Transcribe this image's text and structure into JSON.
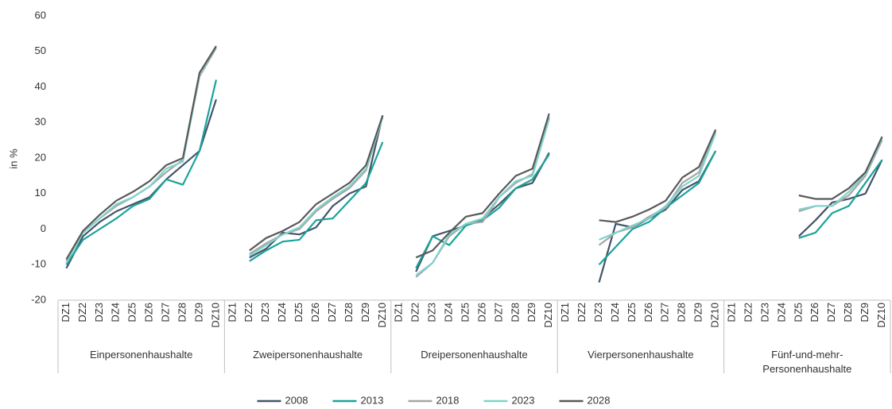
{
  "chart_data": {
    "type": "line",
    "y_label": "in %",
    "categories": [
      "DZ1",
      "DZ2",
      "DZ3",
      "DZ4",
      "DZ5",
      "DZ6",
      "DZ7",
      "DZ8",
      "DZ9",
      "DZ10",
      "DZ1",
      "DZ2",
      "DZ3",
      "DZ4",
      "DZ5",
      "DZ6",
      "DZ7",
      "DZ8",
      "DZ9",
      "DZ10",
      "DZ1",
      "DZ2",
      "DZ3",
      "DZ4",
      "DZ5",
      "DZ6",
      "DZ7",
      "DZ8",
      "DZ9",
      "DZ10",
      "DZ1",
      "DZ2",
      "DZ3",
      "DZ4",
      "DZ5",
      "DZ6",
      "DZ7",
      "DZ8",
      "DZ9",
      "DZ10",
      "DZ1",
      "DZ2",
      "DZ3",
      "DZ4",
      "DZ5",
      "DZ6",
      "DZ7",
      "DZ8",
      "DZ9",
      "DZ10"
    ],
    "groups": [
      "Einpersonenhaushalte",
      "Zweipersonenhaushalte",
      "Dreipersonenhaushalte",
      "Vierpersonenhaushalte",
      "Fünf-und-mehr-Personenhaushalte"
    ],
    "series": [
      {
        "name": "2008",
        "color": "#44546a",
        "values": [
          -11,
          -2,
          2,
          5,
          7,
          9,
          14,
          18,
          22,
          36.5,
          null,
          -8,
          -5.5,
          -1,
          -1.5,
          0.5,
          6.5,
          10,
          12,
          32,
          null,
          -12,
          -2,
          -0.5,
          1,
          3,
          7,
          11.5,
          13,
          21.5,
          null,
          null,
          -15,
          1.5,
          0.5,
          3,
          5.5,
          11,
          13.5,
          22,
          null,
          null,
          null,
          null,
          -2,
          2.5,
          7.5,
          8.5,
          10,
          19.5
        ]
      },
      {
        "name": "2013",
        "color": "#1aa39a",
        "values": [
          -10,
          -3,
          0,
          3,
          6.5,
          8.5,
          14,
          12.5,
          22,
          42,
          null,
          -9,
          -6,
          -3.5,
          -3,
          2.5,
          3,
          8,
          13,
          24.5,
          null,
          -11,
          -2,
          -4.5,
          1,
          2.5,
          6,
          11.5,
          14,
          21,
          null,
          null,
          -10,
          -5,
          0,
          2,
          6,
          9.5,
          13,
          22,
          null,
          null,
          null,
          null,
          -2.5,
          -1,
          4.5,
          6.5,
          13,
          19.5
        ]
      },
      {
        "name": "2018",
        "color": "#a6a6a6",
        "values": [
          -9,
          -1,
          3,
          6.5,
          9,
          12,
          16,
          19.5,
          43,
          51,
          null,
          -7,
          -4,
          -1.5,
          0,
          5,
          8.5,
          11.5,
          16.5,
          31.5,
          null,
          -13.5,
          -9.5,
          -2,
          1.5,
          2,
          9,
          13,
          15.5,
          31.5,
          null,
          null,
          -4.5,
          -1,
          0.5,
          3.5,
          6,
          13,
          16,
          27.5,
          null,
          null,
          null,
          null,
          5,
          6.5,
          6.5,
          9.5,
          15,
          25
        ]
      },
      {
        "name": "2023",
        "color": "#7fd3cc",
        "values": [
          -9.5,
          -1,
          3,
          7,
          9,
          12,
          17,
          19,
          43.5,
          51.5,
          null,
          -7.5,
          -4.5,
          -1.5,
          0.5,
          5.5,
          9,
          12,
          17,
          31.5,
          null,
          -13,
          -9.5,
          -1.5,
          1.5,
          3,
          9,
          13.5,
          15,
          31,
          null,
          null,
          -3,
          -1,
          1,
          3,
          6.5,
          12,
          15,
          27,
          null,
          null,
          null,
          null,
          5.5,
          6.5,
          6.5,
          10.5,
          15.5,
          25.5
        ]
      },
      {
        "name": "2028",
        "color": "#595959",
        "values": [
          -8.5,
          -0.5,
          4,
          8,
          10.5,
          13.5,
          18,
          20,
          44,
          51.5,
          null,
          -6,
          -2.5,
          -0.5,
          2,
          7,
          10,
          13,
          18,
          32,
          null,
          -8,
          -6,
          -1,
          3.5,
          4.5,
          10,
          15,
          17,
          32.5,
          null,
          null,
          2.5,
          2,
          3.5,
          5.5,
          8,
          14.5,
          17.5,
          28,
          null,
          null,
          null,
          null,
          9.5,
          8.5,
          8.5,
          11.5,
          16,
          26
        ]
      }
    ],
    "ylim": [
      -20,
      60
    ],
    "yticks": [
      -20,
      -10,
      0,
      10,
      20,
      30,
      40,
      50,
      60
    ],
    "grid": false,
    "legend": "bottom"
  }
}
